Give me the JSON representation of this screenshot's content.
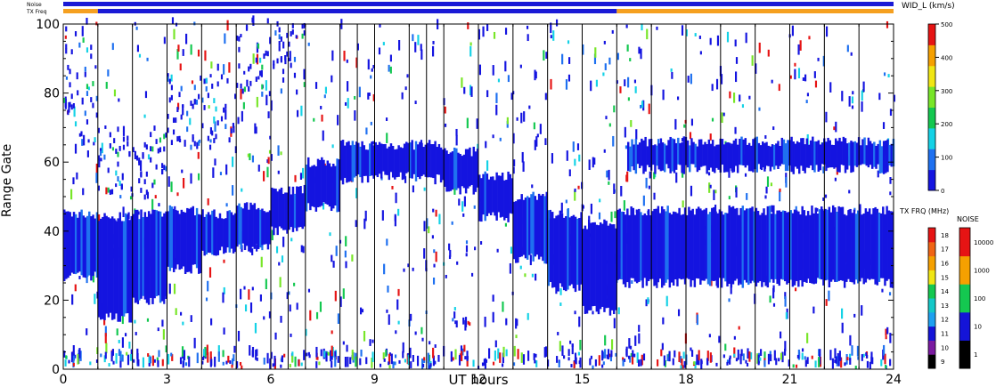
{
  "header": {
    "noise_label": "Noise",
    "txfreq_label": "TX Freq",
    "noise_bar_color": "#1a1ad6",
    "freq_bar_segments": [
      {
        "from": 0,
        "to": 1,
        "color": "#f5a020"
      },
      {
        "from": 1,
        "to": 16,
        "color": "#1a1ad6"
      },
      {
        "from": 16,
        "to": 24,
        "color": "#f5a020"
      }
    ]
  },
  "chart_data": {
    "type": "heatmap",
    "title": "",
    "xlabel": "UT hours",
    "ylabel": "Range Gate",
    "xlim": [
      0,
      24
    ],
    "ylim": [
      0,
      100
    ],
    "x_ticks": [
      0,
      3,
      6,
      9,
      12,
      15,
      18,
      21,
      24
    ],
    "y_ticks": [
      0,
      20,
      40,
      60,
      80,
      100
    ],
    "scan_boundaries": [
      1,
      2,
      3,
      4,
      5,
      6,
      6.5,
      7,
      8,
      8.5,
      9,
      10,
      10.5,
      11,
      12,
      13,
      14,
      15,
      16,
      17,
      18,
      19,
      20,
      21,
      22,
      23
    ],
    "parameter": "WID_L (km/s)",
    "bands": [
      {
        "from": 0,
        "to": 1,
        "lower": 27,
        "upper": 45
      },
      {
        "from": 1,
        "to": 2,
        "lower": 15,
        "upper": 44
      },
      {
        "from": 2,
        "to": 3,
        "lower": 20,
        "upper": 45
      },
      {
        "from": 3,
        "to": 4,
        "lower": 29,
        "upper": 46
      },
      {
        "from": 4,
        "to": 5,
        "lower": 34,
        "upper": 45
      },
      {
        "from": 5,
        "to": 6,
        "lower": 35,
        "upper": 47
      },
      {
        "from": 6,
        "to": 7,
        "lower": 40,
        "upper": 52
      },
      {
        "from": 7,
        "to": 8,
        "lower": 47,
        "upper": 60
      },
      {
        "from": 8,
        "to": 9,
        "lower": 55,
        "upper": 65
      },
      {
        "from": 9,
        "to": 10,
        "lower": 56,
        "upper": 65
      },
      {
        "from": 10,
        "to": 11,
        "lower": 55,
        "upper": 65
      },
      {
        "from": 11,
        "to": 12,
        "lower": 52,
        "upper": 63
      },
      {
        "from": 12,
        "to": 13,
        "lower": 44,
        "upper": 56
      },
      {
        "from": 13,
        "to": 14,
        "lower": 32,
        "upper": 50
      },
      {
        "from": 14,
        "to": 15,
        "lower": 24,
        "upper": 45
      },
      {
        "from": 15,
        "to": 16,
        "lower": 17,
        "upper": 42
      },
      {
        "from": 16,
        "to": 24,
        "lower": 25,
        "upper": 46
      },
      {
        "from": 16.3,
        "to": 24,
        "lower": 58,
        "upper": 66
      }
    ],
    "upper_arc": [
      {
        "from": 0,
        "to": 1,
        "lower": 62,
        "upper": 100
      },
      {
        "from": 1,
        "to": 3,
        "lower": 50,
        "upper": 70
      },
      {
        "from": 3,
        "to": 5,
        "lower": 65,
        "upper": 85
      },
      {
        "from": 5,
        "to": 7,
        "lower": 80,
        "upper": 100
      }
    ],
    "colorbar_velocity": {
      "label": "WID_L (km/s)",
      "ticks": [
        0,
        100,
        200,
        300,
        400,
        500
      ],
      "colors": [
        "#1414e0",
        "#1e70f0",
        "#14d2e6",
        "#14c850",
        "#78e628",
        "#f0e614",
        "#f5a000",
        "#e61414"
      ]
    },
    "colorbar_freq": {
      "label": "TX FRQ (MHz)",
      "ticks": [
        9,
        10,
        11,
        12,
        13,
        14,
        15,
        16,
        17,
        18
      ],
      "colors": [
        "#000000",
        "#7a1aa0",
        "#1414d8",
        "#1ea0f0",
        "#14c8c8",
        "#14c850",
        "#f0e614",
        "#f5a000",
        "#f06414",
        "#e61414"
      ]
    },
    "colorbar_noise": {
      "label": "NOISE",
      "ticks": [
        1,
        10,
        100,
        1000,
        10000
      ],
      "colors": [
        "#000000",
        "#1414d8",
        "#14c850",
        "#f5a000",
        "#e61414"
      ]
    }
  }
}
